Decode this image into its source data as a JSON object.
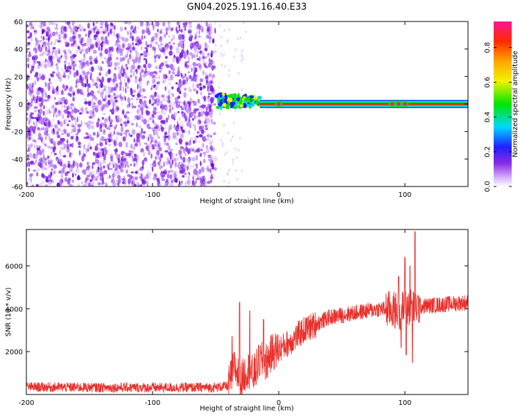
{
  "title": "GN04.2025.191.16.40.E33",
  "chart_data": [
    {
      "type": "heatmap",
      "title": "GN04.2025.191.16.40.E33",
      "xlabel": "Height of straight line (km)",
      "ylabel": "Frequency (Hz)",
      "xlim": [
        -200,
        150
      ],
      "ylim": [
        -60,
        60
      ],
      "x_ticks": [
        -200,
        -100,
        0,
        100
      ],
      "y_ticks": [
        -60,
        -40,
        -20,
        0,
        20,
        40,
        60
      ],
      "x_tick_labels": [
        "-200",
        "-100",
        "0",
        "100"
      ],
      "y_tick_labels": [
        "-60",
        "-40",
        "-20",
        "0",
        "20",
        "40",
        "60"
      ],
      "colorbar": {
        "label": "Normalized spectral amplitude",
        "range": [
          0,
          0.95
        ],
        "ticks": [
          0.0,
          0.2,
          0.4,
          0.6,
          0.8
        ],
        "tick_labels": [
          "0.0",
          "0.2",
          "0.4",
          "0.6",
          "0.8"
        ],
        "colormap": "rainbow (white-violet-blue-cyan-green-yellow-orange-red-magenta)"
      },
      "regions": [
        {
          "x_range": [
            -200,
            -50
          ],
          "description": "broadband speckle noise over all frequencies",
          "amplitude": 0.05
        },
        {
          "x_range": [
            -50,
            -15
          ],
          "freq_center": 2,
          "freq_halfwidth": 6,
          "amplitude": 0.45
        },
        {
          "x_range": [
            -15,
            150
          ],
          "freq_center": 0,
          "freq_halfwidth": 3,
          "amplitude": 0.9
        }
      ],
      "hotspots_x": [
        0,
        90,
        95,
        100
      ],
      "grid": false
    },
    {
      "type": "line",
      "xlabel": "Height of straight line (km)",
      "ylabel": "SNR (10 * v/v)",
      "xlim": [
        -200,
        150
      ],
      "ylim": [
        0,
        7700
      ],
      "x_ticks": [
        -200,
        -100,
        0,
        100
      ],
      "y_ticks": [
        2000,
        4000,
        6000
      ],
      "x_tick_labels": [
        "-200",
        "-100",
        "0",
        "100"
      ],
      "y_tick_labels": [
        "2000",
        "4000",
        "6000"
      ],
      "series_color": "#e8302c",
      "grid": false,
      "trend_x": [
        -200,
        -150,
        -100,
        -50,
        -40,
        -35,
        -30,
        -25,
        -20,
        -15,
        -10,
        -5,
        0,
        10,
        20,
        30,
        40,
        50,
        60,
        70,
        80,
        90,
        95,
        100,
        105,
        110,
        120,
        130,
        140,
        150
      ],
      "trend_y": [
        350,
        330,
        320,
        330,
        400,
        1300,
        600,
        1200,
        900,
        1600,
        1500,
        2000,
        2100,
        2500,
        3000,
        3300,
        3600,
        3700,
        3800,
        3900,
        4000,
        3950,
        3900,
        4000,
        4100,
        4100,
        4150,
        4200,
        4250,
        4300
      ],
      "spikes": [
        {
          "x": -37,
          "y": 2700
        },
        {
          "x": -31,
          "y": 4300
        },
        {
          "x": -23,
          "y": 3900
        },
        {
          "x": -12,
          "y": 3500
        },
        {
          "x": 95,
          "y": 5500
        },
        {
          "x": 100,
          "y": 6400
        },
        {
          "x": 104,
          "y": 6000
        },
        {
          "x": 106,
          "y": 5300
        },
        {
          "x": 108,
          "y": 7600
        }
      ],
      "dips": [
        {
          "x": 97,
          "y": 2200
        },
        {
          "x": 101,
          "y": 1850
        },
        {
          "x": 106,
          "y": 1500
        }
      ]
    }
  ]
}
